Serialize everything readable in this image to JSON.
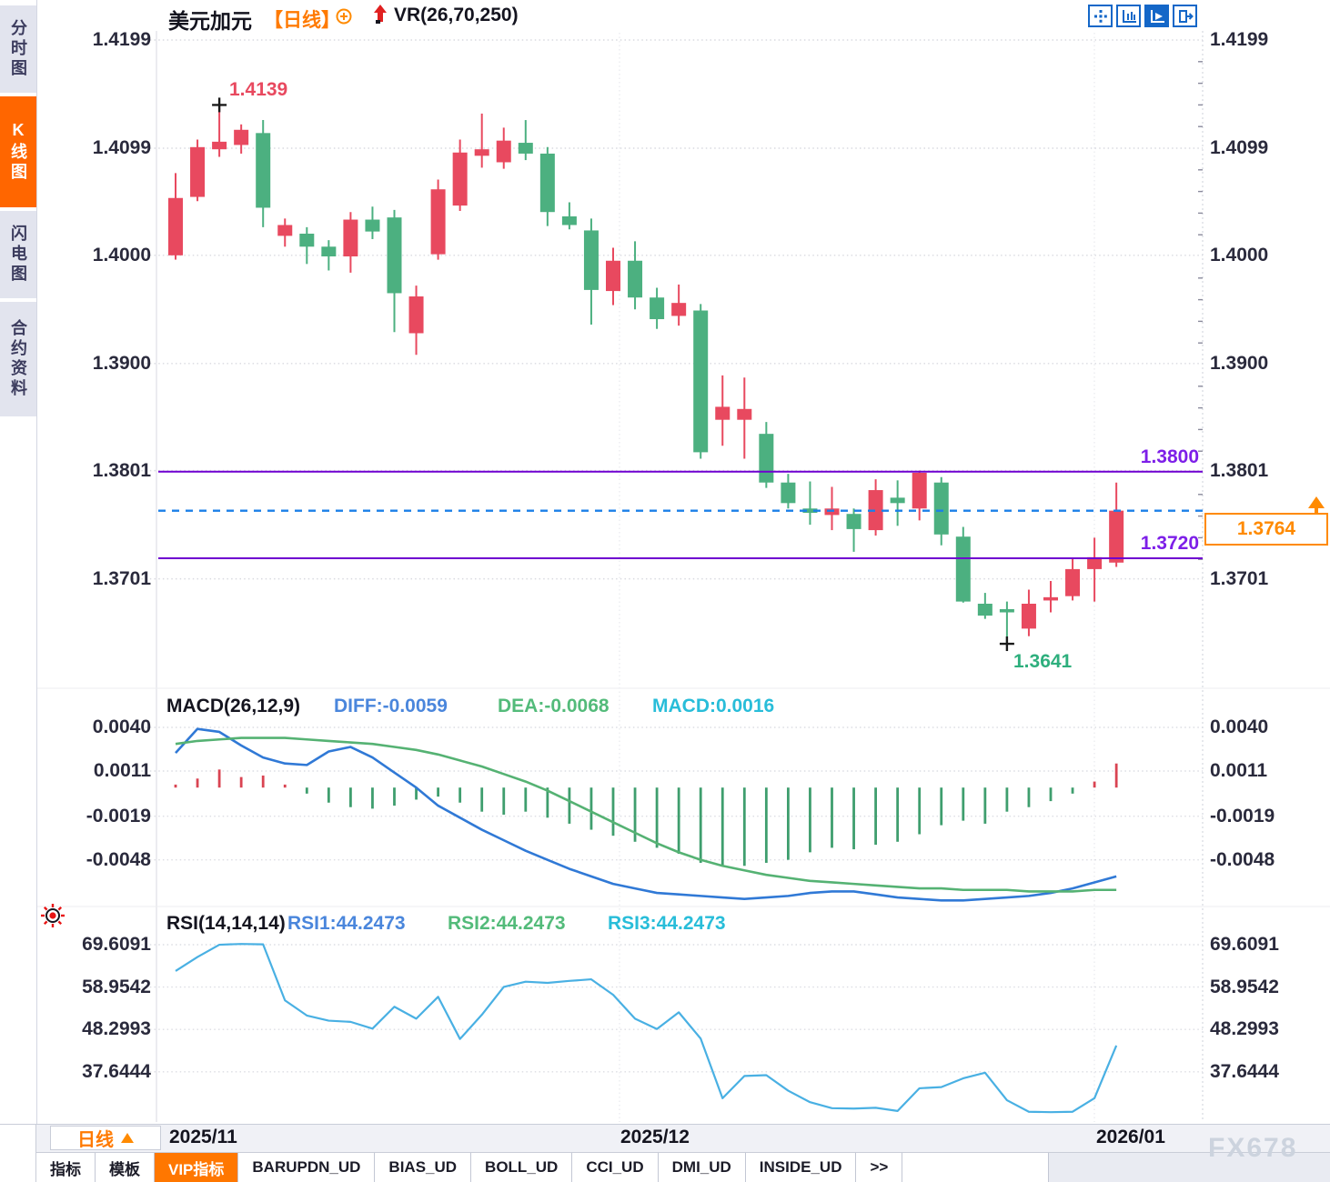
{
  "header": {
    "symbol": "美元加元",
    "period": "【日线】",
    "indicator": "VR(26,70,250)"
  },
  "sidebar": {
    "active_index": 1,
    "items": [
      {
        "label": "分时图"
      },
      {
        "label": "K线图"
      },
      {
        "label": "闪电图"
      },
      {
        "label": "合约资料"
      }
    ]
  },
  "toolbar": {
    "icons": [
      "crosshair-move-icon",
      "axis-chart-icon",
      "axis-play-icon",
      "exit-right-icon"
    ]
  },
  "price_panel": {
    "high_label": "1.4139",
    "low_label": "1.3641",
    "level_labels": [
      "1.3800",
      "1.3720"
    ],
    "last_label": "1.3764"
  },
  "macd_header": {
    "title": "MACD(26,12,9)",
    "diff": "DIFF:-0.0059",
    "dea": "DEA:-0.0068",
    "macd": "MACD:0.0016"
  },
  "rsi_header": {
    "title": "RSI(14,14,14)",
    "rsi1": "RSI1:44.2473",
    "rsi2": "RSI2:44.2473",
    "rsi3": "RSI3:44.2473"
  },
  "x_axis": {
    "period_button": "日线",
    "labels": [
      "2025/11",
      "2025/12",
      "2026/01"
    ]
  },
  "bottom_tabs": {
    "active": "VIP指标",
    "items": [
      "指标",
      "模板",
      "VIP指标",
      "BARUPDN_UD",
      "BIAS_UD",
      "BOLL_UD",
      "CCI_UD",
      "DMI_UD",
      "INSIDE_UD",
      ">>"
    ]
  },
  "watermark": "FX678",
  "colors": {
    "up": "#e8495f",
    "down": "#4cb080",
    "level_line": "#6f00d0",
    "level_text": "#7d1fe8",
    "last_price_line": "#1a7fe8",
    "tag_orange": "#ff8a00",
    "accent_orange": "#ff6600",
    "diff_line": "#3079d6",
    "dea_line": "#55b273",
    "rsi_line": "#49b0e3",
    "hist_pos": "#d94452",
    "hist_neg": "#3f9e6e",
    "grid": "#d9dae0",
    "toolbar_blue": "#1467c8"
  },
  "chart_data": [
    {
      "type": "candlestick",
      "title": "美元加元 日线",
      "y_ticks": [
        1.4199,
        1.4099,
        1.4,
        1.39,
        1.3801,
        1.3701
      ],
      "x_labels": [
        "2025/11",
        "2025/12",
        "2026/01"
      ],
      "up_color": "#e8495f",
      "down_color": "#4cb080",
      "high_annotation": {
        "value": 1.4139,
        "index": 2
      },
      "low_annotation": {
        "value": 1.3641,
        "index": 38
      },
      "levels": [
        {
          "value": 1.38
        },
        {
          "value": 1.372
        }
      ],
      "last_price": {
        "value": 1.3764
      },
      "ohlc": [
        [
          1.4,
          1.4076,
          1.3996,
          1.4053
        ],
        [
          1.4054,
          1.4107,
          1.405,
          1.41
        ],
        [
          1.4098,
          1.4139,
          1.4091,
          1.4105
        ],
        [
          1.4102,
          1.4121,
          1.4094,
          1.4116
        ],
        [
          1.4113,
          1.4125,
          1.4026,
          1.4044
        ],
        [
          1.4018,
          1.4034,
          1.4008,
          1.4028
        ],
        [
          1.402,
          1.4026,
          1.3992,
          1.4008
        ],
        [
          1.4008,
          1.4014,
          1.3986,
          1.3999
        ],
        [
          1.3999,
          1.404,
          1.3984,
          1.4033
        ],
        [
          1.4033,
          1.4045,
          1.4015,
          1.4022
        ],
        [
          1.4035,
          1.4042,
          1.3929,
          1.3965
        ],
        [
          1.3928,
          1.3972,
          1.3908,
          1.3962
        ],
        [
          1.4001,
          1.407,
          1.3996,
          1.4061
        ],
        [
          1.4046,
          1.4107,
          1.4041,
          1.4095
        ],
        [
          1.4092,
          1.4131,
          1.4081,
          1.4098
        ],
        [
          1.4086,
          1.4118,
          1.408,
          1.4106
        ],
        [
          1.4104,
          1.4125,
          1.4088,
          1.4094
        ],
        [
          1.4094,
          1.41,
          1.4027,
          1.404
        ],
        [
          1.4036,
          1.4049,
          1.4024,
          1.4028
        ],
        [
          1.4023,
          1.4034,
          1.3936,
          1.3968
        ],
        [
          1.3967,
          1.4007,
          1.3954,
          1.3995
        ],
        [
          1.3995,
          1.4013,
          1.395,
          1.3961
        ],
        [
          1.3961,
          1.397,
          1.3932,
          1.3941
        ],
        [
          1.3944,
          1.3973,
          1.3935,
          1.3956
        ],
        [
          1.3949,
          1.3955,
          1.3812,
          1.3818
        ],
        [
          1.3848,
          1.3889,
          1.3824,
          1.386
        ],
        [
          1.3848,
          1.3887,
          1.3812,
          1.3858
        ],
        [
          1.3835,
          1.3846,
          1.3785,
          1.379
        ],
        [
          1.379,
          1.3798,
          1.3766,
          1.3771
        ],
        [
          1.3766,
          1.3791,
          1.3751,
          1.3762
        ],
        [
          1.376,
          1.3786,
          1.3746,
          1.3766
        ],
        [
          1.3761,
          1.3766,
          1.3726,
          1.3747
        ],
        [
          1.3746,
          1.3793,
          1.3741,
          1.3783
        ],
        [
          1.3776,
          1.3792,
          1.375,
          1.3771
        ],
        [
          1.3766,
          1.3801,
          1.3755,
          1.3799
        ],
        [
          1.379,
          1.3795,
          1.3732,
          1.3742
        ],
        [
          1.374,
          1.3749,
          1.3679,
          1.368
        ],
        [
          1.3678,
          1.3688,
          1.3664,
          1.3667
        ],
        [
          1.3673,
          1.368,
          1.3641,
          1.367
        ],
        [
          1.3655,
          1.3691,
          1.3648,
          1.3678
        ],
        [
          1.3681,
          1.3699,
          1.367,
          1.3684
        ],
        [
          1.3685,
          1.372,
          1.3681,
          1.371
        ],
        [
          1.371,
          1.3739,
          1.368,
          1.3721
        ],
        [
          1.3716,
          1.379,
          1.3712,
          1.3764
        ]
      ]
    },
    {
      "type": "macd",
      "title": "MACD(26,12,9)",
      "y_ticks": [
        0.004,
        0.0011,
        -0.0019,
        -0.0048
      ],
      "series": [
        {
          "name": "DIFF",
          "color": "#3079d6",
          "values": [
            0.0023,
            0.0039,
            0.0037,
            0.0028,
            0.002,
            0.0016,
            0.0015,
            0.0024,
            0.0027,
            0.002,
            0.001,
            0.0,
            -0.0012,
            -0.002,
            -0.0028,
            -0.0035,
            -0.0042,
            -0.0048,
            -0.0054,
            -0.0059,
            -0.0064,
            -0.0067,
            -0.007,
            -0.0071,
            -0.0072,
            -0.0073,
            -0.0074,
            -0.0073,
            -0.0072,
            -0.007,
            -0.0069,
            -0.0069,
            -0.0071,
            -0.0073,
            -0.0074,
            -0.0075,
            -0.0075,
            -0.0074,
            -0.0073,
            -0.0072,
            -0.007,
            -0.0067,
            -0.0063,
            -0.0059
          ]
        },
        {
          "name": "DEA",
          "color": "#55b273",
          "values": [
            0.0029,
            0.0031,
            0.0032,
            0.0033,
            0.0033,
            0.0033,
            0.0032,
            0.0031,
            0.003,
            0.0029,
            0.0027,
            0.0025,
            0.0022,
            0.0018,
            0.0014,
            0.0009,
            0.0004,
            -0.0002,
            -0.0009,
            -0.0016,
            -0.0023,
            -0.003,
            -0.0037,
            -0.0043,
            -0.0048,
            -0.0052,
            -0.0055,
            -0.0058,
            -0.006,
            -0.0062,
            -0.0063,
            -0.0064,
            -0.0065,
            -0.0066,
            -0.0067,
            -0.0067,
            -0.0068,
            -0.0068,
            -0.0068,
            -0.0069,
            -0.0069,
            -0.0069,
            -0.0068,
            -0.0068
          ]
        }
      ],
      "histogram": {
        "pos_color": "#d94452",
        "neg_color": "#3f9e6e",
        "values": [
          0.0002,
          0.0006,
          0.0012,
          0.0007,
          0.0008,
          0.0002,
          -0.0004,
          -0.001,
          -0.0013,
          -0.0014,
          -0.0012,
          -0.0008,
          -0.0006,
          -0.001,
          -0.0016,
          -0.0018,
          -0.0016,
          -0.002,
          -0.0024,
          -0.0028,
          -0.0032,
          -0.0036,
          -0.004,
          -0.0044,
          -0.005,
          -0.0052,
          -0.0052,
          -0.005,
          -0.0048,
          -0.0043,
          -0.004,
          -0.0041,
          -0.0038,
          -0.0036,
          -0.0031,
          -0.0025,
          -0.0022,
          -0.0024,
          -0.0016,
          -0.0013,
          -0.0009,
          -0.0004,
          0.0004,
          0.0016
        ]
      }
    },
    {
      "type": "line",
      "title": "RSI(14,14,14)",
      "y_ticks": [
        69.6091,
        58.9542,
        48.2993,
        37.6444
      ],
      "series": [
        {
          "name": "RSI",
          "color": "#49b0e3",
          "values": [
            63.0,
            66.5,
            69.6,
            69.8,
            69.7,
            55.6,
            51.8,
            50.5,
            50.2,
            48.5,
            54.0,
            51.0,
            56.5,
            45.9,
            52.0,
            59.0,
            60.3,
            60.0,
            60.5,
            60.9,
            57.0,
            51.0,
            48.4,
            52.6,
            46.0,
            31.0,
            36.6,
            36.8,
            32.9,
            30.0,
            28.5,
            28.4,
            28.6,
            27.8,
            33.5,
            33.8,
            36.0,
            37.4,
            30.5,
            27.6,
            27.5,
            27.6,
            31.0,
            44.2473
          ]
        }
      ]
    }
  ]
}
